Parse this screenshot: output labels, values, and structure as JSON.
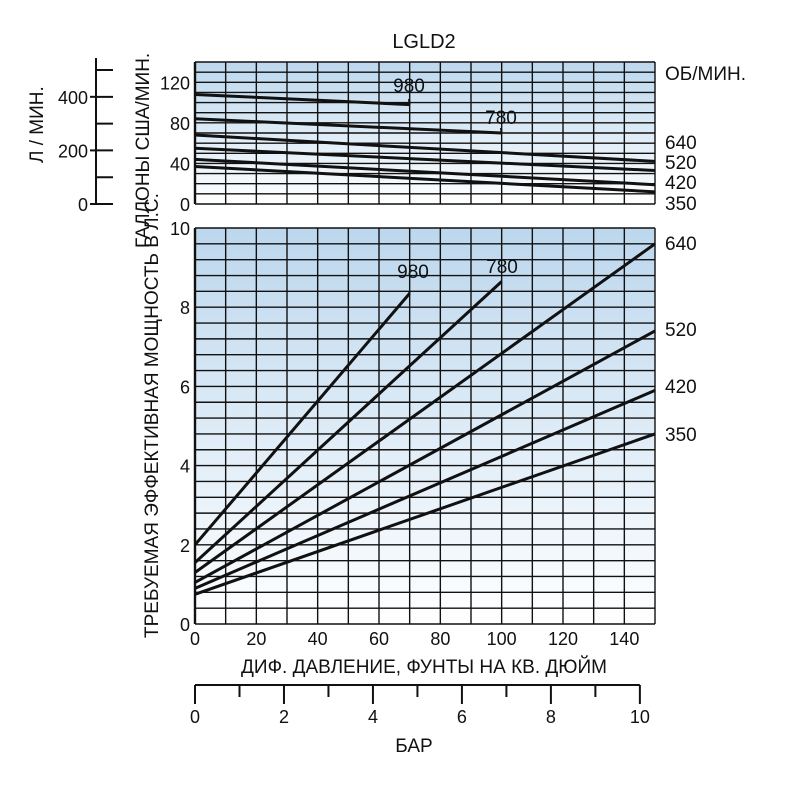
{
  "colors": {
    "plot_top": "#bcd7ee",
    "plot_bottom": "#ffffff",
    "grid": "#111111",
    "line": "#111111",
    "text": "#111111"
  },
  "title": "LGLD2",
  "rpm_header": "ОБ/МИН.",
  "chart_data": [
    {
      "type": "line",
      "title": "LGLD2",
      "xlabel": "ДИФ. ДАВЛЕНИЕ, ФУНТЫ НА КВ. ДЮЙМ",
      "ylabel": "ГАЛЛОНЫ США/МИН.",
      "secondary_ylabel": "Л / МИН.",
      "xlim": [
        0,
        150
      ],
      "ylim": [
        0,
        140
      ],
      "secondary_ylim": [
        0,
        530
      ],
      "grid": true,
      "x_ticks": [
        "0",
        "20",
        "40",
        "60",
        "80",
        "100",
        "120",
        "140"
      ],
      "y_ticks": [
        "0",
        "40",
        "80",
        "120"
      ],
      "secondary_y_ticks": [
        "0",
        "200",
        "400"
      ],
      "series": [
        {
          "name": "980",
          "x": [
            0,
            70
          ],
          "y": [
            108,
            98
          ]
        },
        {
          "name": "780",
          "x": [
            0,
            100
          ],
          "y": [
            84,
            70
          ]
        },
        {
          "name": "640",
          "x": [
            0,
            150
          ],
          "y": [
            68,
            42
          ]
        },
        {
          "name": "520",
          "x": [
            0,
            150
          ],
          "y": [
            55,
            33
          ]
        },
        {
          "name": "420",
          "x": [
            0,
            150
          ],
          "y": [
            44,
            19
          ]
        },
        {
          "name": "350",
          "x": [
            0,
            150
          ],
          "y": [
            37,
            12
          ]
        }
      ]
    },
    {
      "type": "line",
      "xlabel": "ДИФ. ДАВЛЕНИЕ, ФУНТЫ НА КВ. ДЮЙМ",
      "ylabel": "ТРЕБУЕМАЯ ЭФФЕКТИВНАЯ МОЩНОСТЬ В Л.С.",
      "secondary_xlabel": "БАР",
      "xlim": [
        0,
        150
      ],
      "ylim": [
        0,
        10
      ],
      "secondary_xlim": [
        0,
        10.34
      ],
      "grid": true,
      "x_ticks": [
        "0",
        "20",
        "40",
        "60",
        "80",
        "100",
        "120",
        "140"
      ],
      "y_ticks": [
        "0",
        "2",
        "4",
        "6",
        "8",
        "10"
      ],
      "secondary_x_ticks": [
        "0",
        "2",
        "4",
        "6",
        "8",
        "10"
      ],
      "series": [
        {
          "name": "980",
          "x": [
            0,
            70
          ],
          "y": [
            2.0,
            8.35
          ]
        },
        {
          "name": "780",
          "x": [
            0,
            100
          ],
          "y": [
            1.55,
            8.65
          ]
        },
        {
          "name": "640",
          "x": [
            0,
            150
          ],
          "y": [
            1.3,
            9.6
          ]
        },
        {
          "name": "520",
          "x": [
            0,
            150
          ],
          "y": [
            1.05,
            7.4
          ]
        },
        {
          "name": "420",
          "x": [
            0,
            150
          ],
          "y": [
            0.9,
            5.9
          ]
        },
        {
          "name": "350",
          "x": [
            0,
            150
          ],
          "y": [
            0.75,
            4.8
          ]
        }
      ]
    }
  ]
}
